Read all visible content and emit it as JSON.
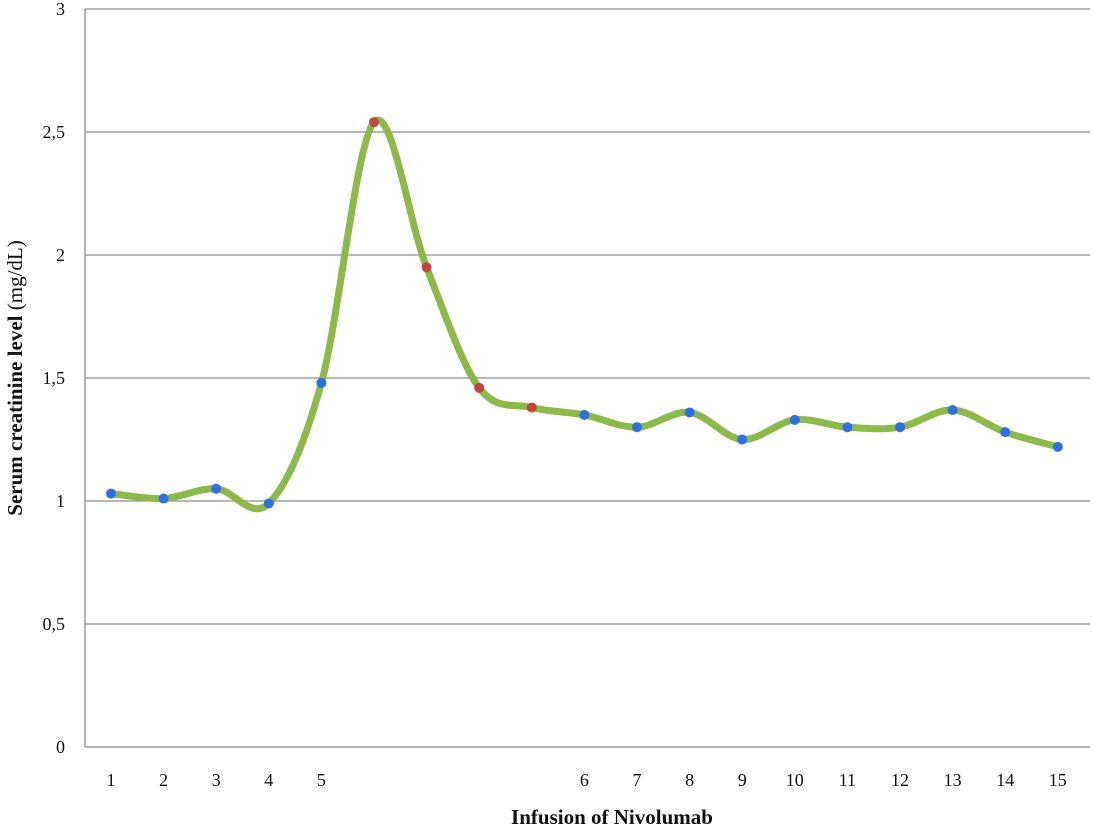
{
  "chart_data": {
    "type": "line",
    "title": "",
    "xlabel": "Infusion of Nivolumab",
    "ylabel_bold": "Serum creatinine level",
    "ylabel_unit": " (mg/dL)",
    "ylim": [
      0,
      3
    ],
    "y_ticks": [
      "0",
      "0,5",
      "1",
      "1,5",
      "2",
      "2,5",
      "3"
    ],
    "y_tick_values": [
      0,
      0.5,
      1,
      1.5,
      2,
      2.5,
      3
    ],
    "grid": true,
    "legend": "none",
    "points": [
      {
        "x_label": "1",
        "y": 1.03,
        "marker": "blue"
      },
      {
        "x_label": "2",
        "y": 1.01,
        "marker": "blue"
      },
      {
        "x_label": "3",
        "y": 1.05,
        "marker": "blue"
      },
      {
        "x_label": "4",
        "y": 0.99,
        "marker": "blue"
      },
      {
        "x_label": "5",
        "y": 1.48,
        "marker": "blue"
      },
      {
        "x_label": "",
        "y": 2.54,
        "marker": "red"
      },
      {
        "x_label": "",
        "y": 1.95,
        "marker": "red"
      },
      {
        "x_label": "",
        "y": 1.46,
        "marker": "red"
      },
      {
        "x_label": "",
        "y": 1.38,
        "marker": "red"
      },
      {
        "x_label": "6",
        "y": 1.35,
        "marker": "blue"
      },
      {
        "x_label": "7",
        "y": 1.3,
        "marker": "blue"
      },
      {
        "x_label": "8",
        "y": 1.36,
        "marker": "blue"
      },
      {
        "x_label": "9",
        "y": 1.25,
        "marker": "blue"
      },
      {
        "x_label": "10",
        "y": 1.33,
        "marker": "blue"
      },
      {
        "x_label": "11",
        "y": 1.3,
        "marker": "blue"
      },
      {
        "x_label": "12",
        "y": 1.3,
        "marker": "blue"
      },
      {
        "x_label": "13",
        "y": 1.37,
        "marker": "blue"
      },
      {
        "x_label": "14",
        "y": 1.28,
        "marker": "blue"
      },
      {
        "x_label": "15",
        "y": 1.22,
        "marker": "blue"
      }
    ],
    "colors": {
      "line": "#8db84a",
      "marker_blue": "#2f6fe0",
      "marker_red": "#c0473f",
      "grid": "#8c8c8c"
    }
  }
}
